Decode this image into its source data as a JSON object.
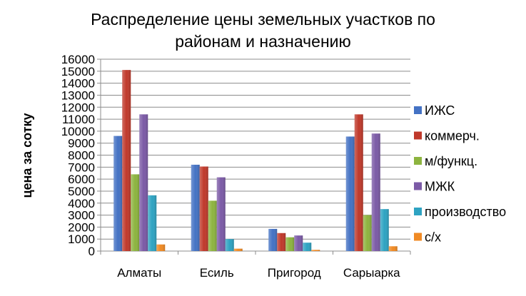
{
  "chart_data": {
    "type": "bar",
    "title_lines": [
      "Распределение цены земельных участков по",
      "районам и назначению"
    ],
    "ylabel": "цена за сотку",
    "xlabel": "",
    "ylim": [
      0,
      16000
    ],
    "ytick_step": 1000,
    "grid": true,
    "legend_position": "right",
    "categories": [
      "Алматы",
      "Есиль",
      "Пригород",
      "Сарыарка"
    ],
    "series": [
      {
        "name": "ИЖС",
        "color": "#4472C4",
        "values": [
          9600,
          7200,
          1850,
          9550
        ]
      },
      {
        "name": "коммерч.",
        "color": "#C0392B",
        "values": [
          15100,
          7050,
          1500,
          11400
        ]
      },
      {
        "name": "м/функц.",
        "color": "#8DB43F",
        "values": [
          6400,
          4200,
          1150,
          3000
        ]
      },
      {
        "name": "МЖК",
        "color": "#7B5AA6",
        "values": [
          11400,
          6150,
          1300,
          9800
        ]
      },
      {
        "name": "производство",
        "color": "#2EA3C2",
        "values": [
          4650,
          1000,
          700,
          3500
        ]
      },
      {
        "name": "с/х",
        "color": "#F08A24",
        "values": [
          550,
          200,
          100,
          400
        ]
      }
    ]
  }
}
